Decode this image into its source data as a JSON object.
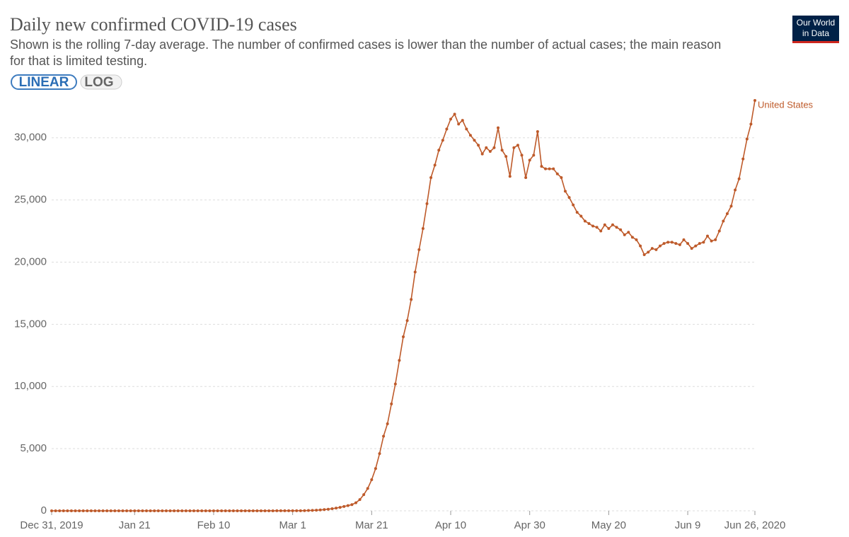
{
  "chart_data": {
    "type": "line",
    "title": "Daily new confirmed COVID-19 cases",
    "subtitle": [
      "Shown is the rolling 7-day average. The number of confirmed cases is lower than the number of actual cases; the main reason",
      "for that is limited testing."
    ],
    "scale_buttons": [
      "LINEAR",
      "LOG"
    ],
    "log_scale": false,
    "logo": [
      "Our World",
      "in Data"
    ],
    "grid": true,
    "x": [
      "2019-12-31",
      "2020-01-01",
      "2020-01-02",
      "2020-01-03",
      "2020-01-04",
      "2020-01-05",
      "2020-01-06",
      "2020-01-07",
      "2020-01-08",
      "2020-01-09",
      "2020-01-10",
      "2020-01-11",
      "2020-01-12",
      "2020-01-13",
      "2020-01-14",
      "2020-01-15",
      "2020-01-16",
      "2020-01-17",
      "2020-01-18",
      "2020-01-19",
      "2020-01-20",
      "2020-01-21",
      "2020-01-22",
      "2020-01-23",
      "2020-01-24",
      "2020-01-25",
      "2020-01-26",
      "2020-01-27",
      "2020-01-28",
      "2020-01-29",
      "2020-01-30",
      "2020-01-31",
      "2020-02-01",
      "2020-02-02",
      "2020-02-03",
      "2020-02-04",
      "2020-02-05",
      "2020-02-06",
      "2020-02-07",
      "2020-02-08",
      "2020-02-09",
      "2020-02-10",
      "2020-02-11",
      "2020-02-12",
      "2020-02-13",
      "2020-02-14",
      "2020-02-15",
      "2020-02-16",
      "2020-02-17",
      "2020-02-18",
      "2020-02-19",
      "2020-02-20",
      "2020-02-21",
      "2020-02-22",
      "2020-02-23",
      "2020-02-24",
      "2020-02-25",
      "2020-02-26",
      "2020-02-27",
      "2020-02-28",
      "2020-02-29",
      "2020-03-01",
      "2020-03-02",
      "2020-03-03",
      "2020-03-04",
      "2020-03-05",
      "2020-03-06",
      "2020-03-07",
      "2020-03-08",
      "2020-03-09",
      "2020-03-10",
      "2020-03-11",
      "2020-03-12",
      "2020-03-13",
      "2020-03-14",
      "2020-03-15",
      "2020-03-16",
      "2020-03-17",
      "2020-03-18",
      "2020-03-19",
      "2020-03-20",
      "2020-03-21",
      "2020-03-22",
      "2020-03-23",
      "2020-03-24",
      "2020-03-25",
      "2020-03-26",
      "2020-03-27",
      "2020-03-28",
      "2020-03-29",
      "2020-03-30",
      "2020-03-31",
      "2020-04-01",
      "2020-04-02",
      "2020-04-03",
      "2020-04-04",
      "2020-04-05",
      "2020-04-06",
      "2020-04-07",
      "2020-04-08",
      "2020-04-09",
      "2020-04-10",
      "2020-04-11",
      "2020-04-12",
      "2020-04-13",
      "2020-04-14",
      "2020-04-15",
      "2020-04-16",
      "2020-04-17",
      "2020-04-18",
      "2020-04-19",
      "2020-04-20",
      "2020-04-21",
      "2020-04-22",
      "2020-04-23",
      "2020-04-24",
      "2020-04-25",
      "2020-04-26",
      "2020-04-27",
      "2020-04-28",
      "2020-04-29",
      "2020-04-30",
      "2020-05-01",
      "2020-05-02",
      "2020-05-03",
      "2020-05-04",
      "2020-05-05",
      "2020-05-06",
      "2020-05-07",
      "2020-05-08",
      "2020-05-09",
      "2020-05-10",
      "2020-05-11",
      "2020-05-12",
      "2020-05-13",
      "2020-05-14",
      "2020-05-15",
      "2020-05-16",
      "2020-05-17",
      "2020-05-18",
      "2020-05-19",
      "2020-05-20",
      "2020-05-21",
      "2020-05-22",
      "2020-05-23",
      "2020-05-24",
      "2020-05-25",
      "2020-05-26",
      "2020-05-27",
      "2020-05-28",
      "2020-05-29",
      "2020-05-30",
      "2020-05-31",
      "2020-06-01",
      "2020-06-02",
      "2020-06-03",
      "2020-06-04",
      "2020-06-05",
      "2020-06-06",
      "2020-06-07",
      "2020-06-08",
      "2020-06-09",
      "2020-06-10",
      "2020-06-11",
      "2020-06-12",
      "2020-06-13",
      "2020-06-14",
      "2020-06-15",
      "2020-06-16",
      "2020-06-17",
      "2020-06-18",
      "2020-06-19",
      "2020-06-20",
      "2020-06-21",
      "2020-06-22",
      "2020-06-23",
      "2020-06-24",
      "2020-06-25",
      "2020-06-26"
    ],
    "series": [
      {
        "name": "United States",
        "color": "#be5a2a",
        "values": [
          0,
          0,
          0,
          0,
          0,
          0,
          0,
          0,
          0,
          0,
          0,
          0,
          0,
          0,
          0,
          0,
          0,
          0,
          0,
          0,
          0,
          0,
          0,
          0,
          0,
          0,
          0,
          0,
          0,
          0,
          0,
          0,
          0,
          0,
          0,
          0,
          0,
          0,
          0,
          0,
          0,
          0,
          0,
          0,
          0,
          0,
          0,
          0,
          1,
          1,
          1,
          1,
          2,
          2,
          2,
          3,
          3,
          4,
          4,
          5,
          5,
          5,
          7,
          10,
          15,
          25,
          35,
          50,
          70,
          100,
          130,
          170,
          220,
          280,
          350,
          420,
          500,
          650,
          900,
          1300,
          1800,
          2500,
          3400,
          4600,
          6000,
          7000,
          8600,
          10200,
          12100,
          14000,
          15300,
          17000,
          19200,
          21000,
          22700,
          24700,
          26800,
          27800,
          29000,
          29800,
          30700,
          31500,
          31900,
          31100,
          31400,
          30700,
          30200,
          29800,
          29400,
          28700,
          29200,
          28900,
          29200,
          30800,
          29000,
          28500,
          26900,
          29200,
          29400,
          28600,
          26800,
          28200,
          28600,
          30500,
          27700,
          27500,
          27500,
          27500,
          27100,
          26800,
          25700,
          25200,
          24600,
          24000,
          23700,
          23300,
          23100,
          22900,
          22800,
          22500,
          23000,
          22700,
          23000,
          22800,
          22600,
          22200,
          22400,
          22000,
          21800,
          21300,
          20600,
          20800,
          21100,
          21000,
          21300,
          21500,
          21600,
          21600,
          21500,
          21400,
          21800,
          21500,
          21100,
          21300,
          21500,
          21600,
          22100,
          21700,
          21800,
          22500,
          23300,
          23900,
          24500,
          25800,
          26700,
          28300,
          29900,
          31100,
          33000
        ]
      }
    ],
    "xlim": [
      "2019-12-31",
      "2020-06-26"
    ],
    "xticks": [
      {
        "value": "2019-12-31",
        "label": "Dec 31, 2019"
      },
      {
        "value": "2020-01-21",
        "label": "Jan 21"
      },
      {
        "value": "2020-02-10",
        "label": "Feb 10"
      },
      {
        "value": "2020-03-01",
        "label": "Mar 1"
      },
      {
        "value": "2020-03-21",
        "label": "Mar 21"
      },
      {
        "value": "2020-04-10",
        "label": "Apr 10"
      },
      {
        "value": "2020-04-30",
        "label": "Apr 30"
      },
      {
        "value": "2020-05-20",
        "label": "May 20"
      },
      {
        "value": "2020-06-09",
        "label": "Jun 9"
      },
      {
        "value": "2020-06-26",
        "label": "Jun 26, 2020"
      }
    ],
    "ylim": [
      0,
      33000
    ],
    "yticks": [
      0,
      {
        "value": 5000,
        "label": "5,000"
      },
      {
        "value": 10000,
        "label": "10,000"
      },
      {
        "value": 15000,
        "label": "15,000"
      },
      {
        "value": 20000,
        "label": "20,000"
      },
      {
        "value": 25000,
        "label": "25,000"
      },
      {
        "value": 30000,
        "label": "30,000"
      }
    ]
  }
}
